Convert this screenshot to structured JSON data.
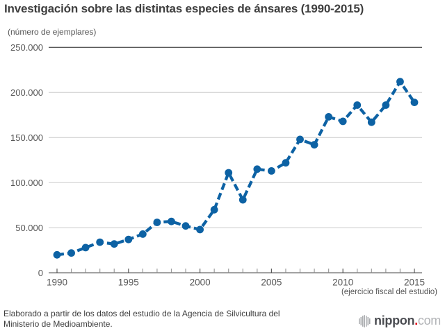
{
  "title": "Investigación sobre las distintas especies de ánsares (1990-2015)",
  "y_axis_unit_label": "(número de ejemplares)",
  "x_axis_note": "(ejercicio fiscal del estudio)",
  "footer": {
    "source_line1": "Elaborado a partir de los datos del estudio de la Agencia de Silvicultura del",
    "source_line2": "Ministerio de Medioambiente.",
    "logo": {
      "name": "nippon.com",
      "text_bold": "nippon",
      "dot": ".",
      "text_light": "com"
    }
  },
  "colors": {
    "accent_blue": "#0d62a4",
    "grid_line": "#cccccc",
    "axis_line": "#595959",
    "tick_minor": "#9b9b9b",
    "label_text": "#565656",
    "title_text": "#3f3f3f",
    "footer_text": "#3d3d3d",
    "logo_gray": "#a7a9ac",
    "logo_dark": "#4b4d52",
    "logo_light": "#b1b3b6",
    "logo_red": "#e60012",
    "background": "#ffffff"
  },
  "chart_data": {
    "type": "line",
    "title": "Investigación sobre las distintas especies de ánsares (1990-2015)",
    "xlabel": "(ejercicio fiscal del estudio)",
    "ylabel": "(número de ejemplares)",
    "x": [
      1990,
      1991,
      1992,
      1993,
      1994,
      1995,
      1996,
      1997,
      1998,
      1999,
      2000,
      2001,
      2002,
      2003,
      2004,
      2005,
      2006,
      2007,
      2008,
      2009,
      2010,
      2011,
      2012,
      2013,
      2014,
      2015
    ],
    "values": [
      20000,
      22000,
      28000,
      34000,
      32000,
      37000,
      43000,
      56000,
      57000,
      52000,
      48000,
      70000,
      111000,
      81000,
      115000,
      113000,
      122000,
      148000,
      142000,
      173000,
      168000,
      186000,
      167000,
      186000,
      212000,
      189000
    ],
    "series_name": "número de ejemplares",
    "x_tick_labels": [
      "1990",
      "1995",
      "2000",
      "2005",
      "2010",
      "2015"
    ],
    "y_ticks": [
      0,
      50000,
      100000,
      150000,
      200000,
      250000
    ],
    "y_tick_labels": [
      "0",
      "50.000",
      "100.000",
      "150.000",
      "200.000",
      "250.000"
    ],
    "ylim": [
      0,
      250000
    ],
    "xlim": [
      1990,
      2015
    ],
    "grid": true,
    "legend": false,
    "line_style": "dashed",
    "marker": "circle"
  }
}
